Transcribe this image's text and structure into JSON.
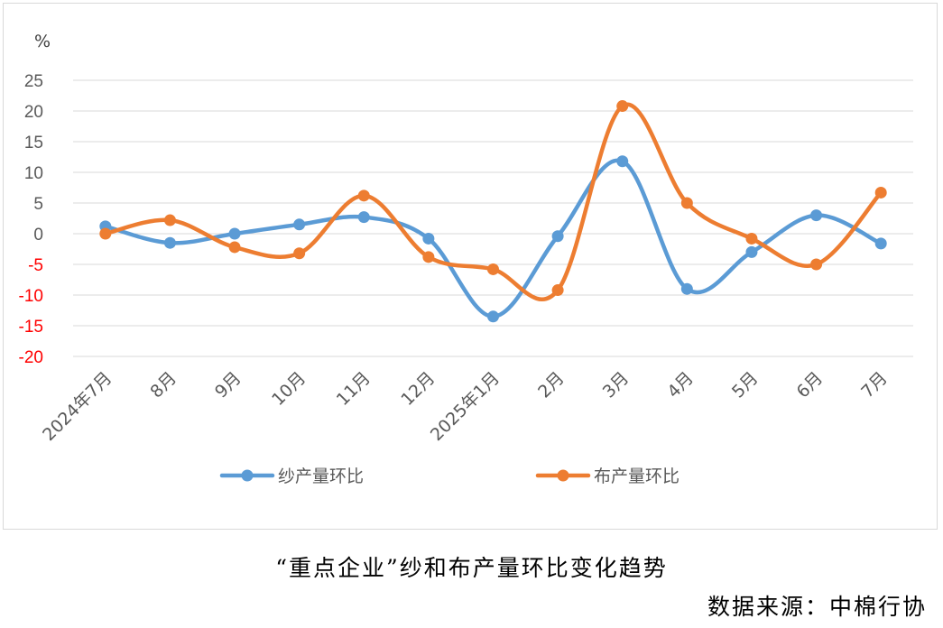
{
  "chart_data": {
    "type": "line",
    "y_unit_label": "%",
    "categories": [
      "2024年7月",
      "8月",
      "9月",
      "10月",
      "11月",
      "12月",
      "2025年1月",
      "2月",
      "3月",
      "4月",
      "5月",
      "6月",
      "7月"
    ],
    "ylim": [
      -20,
      25
    ],
    "yticks": [
      "25",
      "20",
      "15",
      "10",
      "5",
      "0",
      "-5",
      "-10",
      "-15",
      "-20"
    ],
    "grid": true,
    "legend_position": "bottom",
    "series": [
      {
        "name": "纱产量环比",
        "color": "#5b9bd5",
        "values": [
          1.2,
          -1.5,
          0,
          1.5,
          2.7,
          -0.8,
          -13.5,
          -0.4,
          11.8,
          -9.0,
          -3.0,
          3.0,
          -1.6
        ]
      },
      {
        "name": "布产量环比",
        "color": "#ed7d31",
        "values": [
          0,
          2.2,
          -2.2,
          -3.2,
          6.2,
          -3.8,
          -5.8,
          -9.2,
          20.8,
          5.0,
          -0.8,
          -5.0,
          6.7
        ]
      }
    ]
  },
  "caption": "“重点企业”纱和布产量环比变化趋势",
  "source": "数据来源：中棉行协"
}
